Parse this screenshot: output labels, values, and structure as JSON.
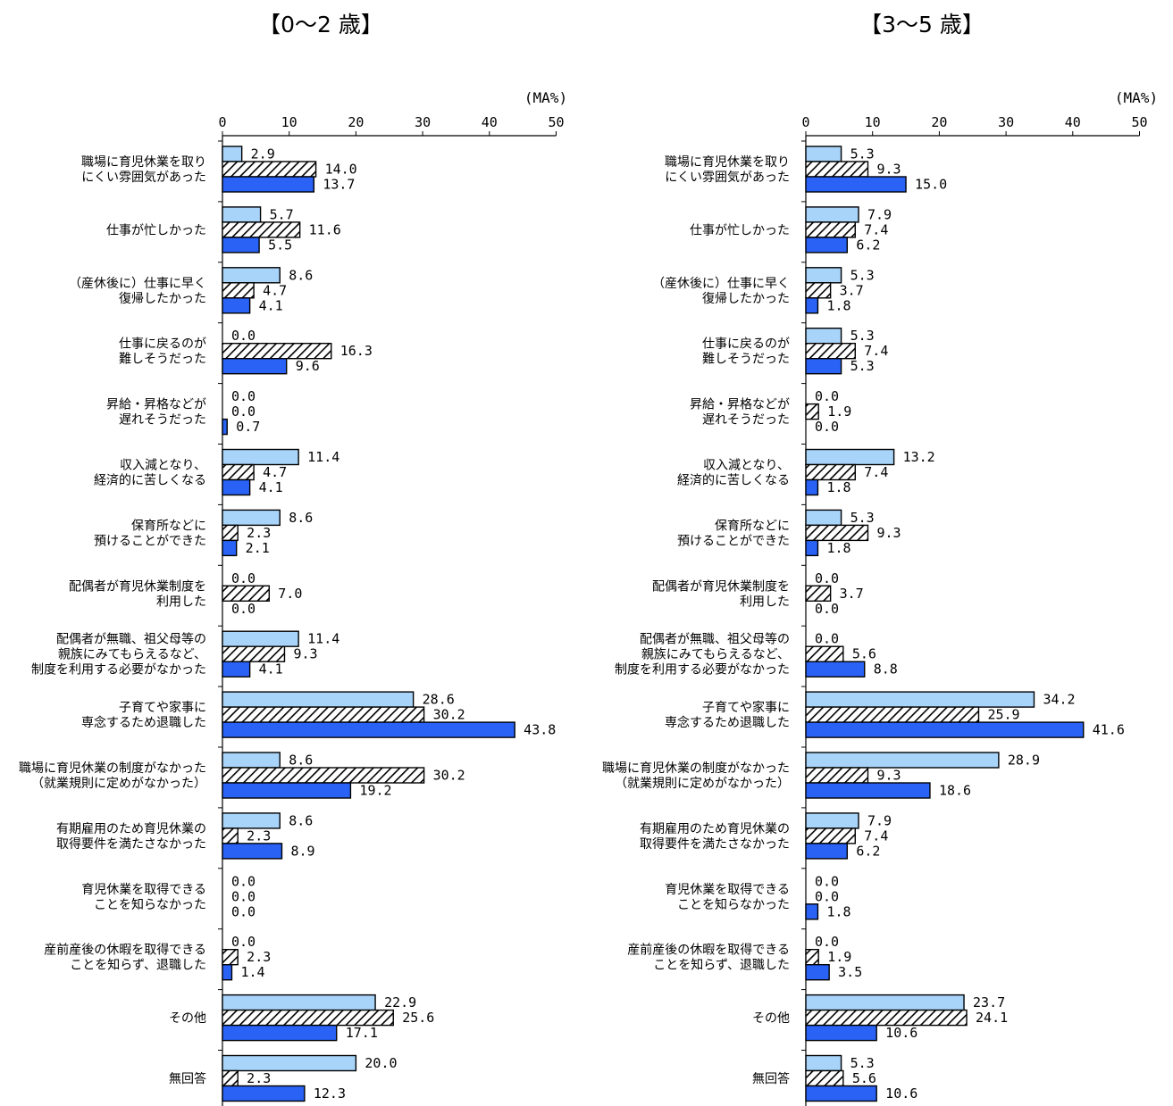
{
  "chart_data": [
    {
      "type": "bar",
      "orientation": "horizontal",
      "title": "【0～2 歳】",
      "unit_label": "(MA%)",
      "xlim": [
        0,
        50
      ],
      "x_ticks": [
        0,
        10,
        20,
        30,
        40,
        50
      ],
      "legend": "none",
      "grid": false,
      "categories": [
        "職場に育児休業を取り\nにくい雰囲気があった",
        "仕事が忙しかった",
        "（産休後に）仕事に早く\n復帰したかった",
        "仕事に戻るのが\n難しそうだった",
        "昇給・昇格などが\n遅れそうだった",
        "収入減となり、\n経済的に苦しくなる",
        "保育所などに\n預けることができた",
        "配偶者が育児休業制度を\n利用した",
        "配偶者が無職、祖父母等の\n親族にみてもらえるなど、\n制度を利用する必要がなかった",
        "子育てや家事に\n専念するため退職した",
        "職場に育児休業の制度がなかった\n（就業規則に定めがなかった）",
        "有期雇用のため育児休業の\n取得要件を満たさなかった",
        "育児休業を取得できる\nことを知らなかった",
        "産前産後の休暇を取得できる\nことを知らず、退職した",
        "その他",
        "無回答"
      ],
      "series": [
        {
          "style": "light-blue",
          "values": [
            2.9,
            5.7,
            8.6,
            0.0,
            0.0,
            11.4,
            8.6,
            0.0,
            11.4,
            28.6,
            8.6,
            8.6,
            0.0,
            0.0,
            22.9,
            20.0
          ]
        },
        {
          "style": "hatched",
          "values": [
            14.0,
            11.6,
            4.7,
            16.3,
            0.0,
            4.7,
            2.3,
            7.0,
            9.3,
            30.2,
            30.2,
            2.3,
            0.0,
            2.3,
            25.6,
            2.3
          ]
        },
        {
          "style": "blue",
          "values": [
            13.7,
            5.5,
            4.1,
            9.6,
            0.7,
            4.1,
            2.1,
            0.0,
            4.1,
            43.8,
            19.2,
            8.9,
            0.0,
            1.4,
            17.1,
            12.3
          ]
        }
      ]
    },
    {
      "type": "bar",
      "orientation": "horizontal",
      "title": "【3～5 歳】",
      "unit_label": "(MA%)",
      "xlim": [
        0,
        50
      ],
      "x_ticks": [
        0,
        10,
        20,
        30,
        40,
        50
      ],
      "legend": "none",
      "grid": false,
      "categories": [
        "職場に育児休業を取り\nにくい雰囲気があった",
        "仕事が忙しかった",
        "（産休後に）仕事に早く\n復帰したかった",
        "仕事に戻るのが\n難しそうだった",
        "昇給・昇格などが\n遅れそうだった",
        "収入減となり、\n経済的に苦しくなる",
        "保育所などに\n預けることができた",
        "配偶者が育児休業制度を\n利用した",
        "配偶者が無職、祖父母等の\n親族にみてもらえるなど、\n制度を利用する必要がなかった",
        "子育てや家事に\n専念するため退職した",
        "職場に育児休業の制度がなかった\n（就業規則に定めがなかった）",
        "有期雇用のため育児休業の\n取得要件を満たさなかった",
        "育児休業を取得できる\nことを知らなかった",
        "産前産後の休暇を取得できる\nことを知らず、退職した",
        "その他",
        "無回答"
      ],
      "series": [
        {
          "style": "light-blue",
          "values": [
            5.3,
            7.9,
            5.3,
            5.3,
            0.0,
            13.2,
            5.3,
            0.0,
            0.0,
            34.2,
            28.9,
            7.9,
            0.0,
            0.0,
            23.7,
            5.3
          ]
        },
        {
          "style": "hatched",
          "values": [
            9.3,
            7.4,
            3.7,
            7.4,
            1.9,
            7.4,
            9.3,
            3.7,
            5.6,
            25.9,
            9.3,
            7.4,
            0.0,
            1.9,
            24.1,
            5.6
          ]
        },
        {
          "style": "blue",
          "values": [
            15.0,
            6.2,
            1.8,
            5.3,
            0.0,
            1.8,
            1.8,
            0.0,
            8.8,
            41.6,
            18.6,
            6.2,
            1.8,
            3.5,
            10.6,
            10.6
          ]
        }
      ]
    }
  ],
  "colors": {
    "light_blue": "#a8d4fa",
    "blue": "#2962f5",
    "hatch_line": "#000000",
    "hatch_bg": "#ffffff"
  }
}
